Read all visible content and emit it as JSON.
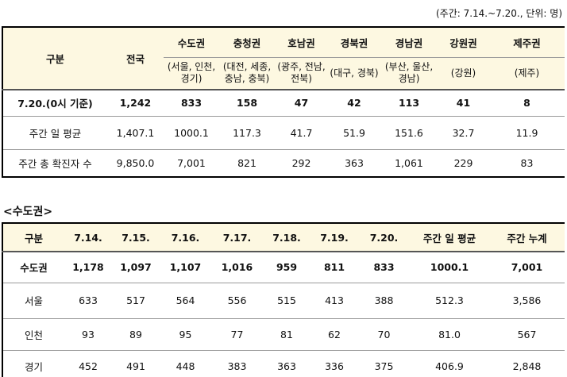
{
  "note": "(주간: 7.14.~7.20., 단위: 명)",
  "table1": {
    "header": [
      "구분",
      "전국",
      "수도권",
      "충청권",
      "호남권",
      "경북권",
      "경남권",
      "강원권",
      "제주권"
    ],
    "subheader": [
      "(서울, 인천, 경기)",
      "(대전, 세종, 충남, 충북)",
      "(광주, 전남, 전북)",
      "(대구, 경북)",
      "(부산, 울산, 경남)",
      "(강원)",
      "(제주)"
    ],
    "rows": [
      [
        "7.20.(0시 기준)",
        "1,242",
        "833",
        "158",
        "47",
        "42",
        "113",
        "41",
        "8"
      ],
      [
        "주간 일 평균",
        "1,407.1",
        "1000.1",
        "117.3",
        "41.7",
        "51.9",
        "151.6",
        "32.7",
        "11.9"
      ],
      [
        "주간 총 확진자 수",
        "9,850.0",
        "7,001",
        "821",
        "292",
        "363",
        "1,061",
        "229",
        "83"
      ]
    ]
  },
  "section_title": "<수도권>",
  "table2": {
    "header": [
      "구분",
      "7.14.",
      "7.15.",
      "7.16.",
      "7.17.",
      "7.18.",
      "7.19.",
      "7.20.",
      "주간 일 평균",
      "주간 누계"
    ],
    "rows": [
      [
        "수도권",
        "1,178",
        "1,097",
        "1,107",
        "1,016",
        "959",
        "811",
        "833",
        "1000.1",
        "7,001"
      ],
      [
        "서울",
        "633",
        "517",
        "564",
        "556",
        "515",
        "413",
        "388",
        "512.3",
        "3,586"
      ],
      [
        "인천",
        "93",
        "89",
        "95",
        "77",
        "81",
        "62",
        "70",
        "81.0",
        "567"
      ],
      [
        "경기",
        "452",
        "491",
        "448",
        "383",
        "363",
        "336",
        "375",
        "406.9",
        "2,848"
      ]
    ]
  }
}
